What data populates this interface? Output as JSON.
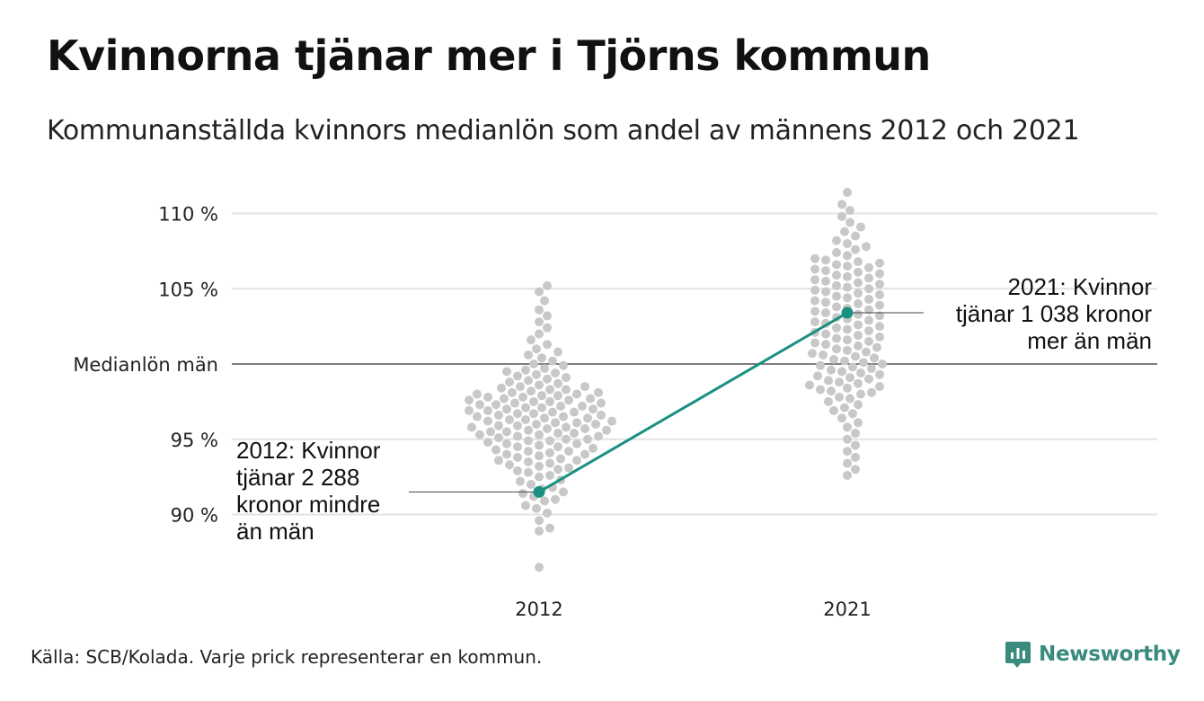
{
  "title": "Kvinnorna tjänar mer i Tjörns kommun",
  "subtitle": "Kommunanställda kvinnors medianlön som andel av männens 2012 och 2021",
  "source": "Källa: SCB/Kolada. Varje prick representerar en kommun.",
  "brand": "Newsworthy",
  "colors": {
    "dots": "#c8c8c8",
    "highlight": "#1a9080",
    "grid": "#e3e3e3",
    "refline": "#333333",
    "brand": "#3a8a7e"
  },
  "chart_data": {
    "type": "scatter",
    "subtype": "beeswarm",
    "categories": [
      "2012",
      "2021"
    ],
    "yticks": [
      {
        "value": 110,
        "label": "110 %"
      },
      {
        "value": 105,
        "label": "105 %"
      },
      {
        "value": 100,
        "label": "Medianlön män"
      },
      {
        "value": 95,
        "label": "95 %"
      },
      {
        "value": 90,
        "label": "90 %"
      }
    ],
    "ylim": [
      86,
      112
    ],
    "grid": true,
    "reference_line": 100,
    "highlight": {
      "values": [
        91.5,
        103.4
      ],
      "annotations": [
        {
          "lines": [
            "2012: Kvinnor",
            "tjänar 2 288",
            "kronor mindre",
            "än män"
          ]
        },
        {
          "lines": [
            "2021: Kvinnor",
            "tjänar 1 038 kronor",
            "mer än män"
          ]
        }
      ]
    },
    "series": [
      {
        "category": "2012",
        "values": [
          86.5,
          88.9,
          89.1,
          89.6,
          90.1,
          90.4,
          90.6,
          90.9,
          91.0,
          91.2,
          91.4,
          91.5,
          91.7,
          91.8,
          92.0,
          92.2,
          92.3,
          92.5,
          92.6,
          92.8,
          92.9,
          93.0,
          93.1,
          93.2,
          93.3,
          93.4,
          93.5,
          93.6,
          93.6,
          93.7,
          93.8,
          93.9,
          94.0,
          94.0,
          94.1,
          94.2,
          94.2,
          94.3,
          94.4,
          94.5,
          94.5,
          94.6,
          94.7,
          94.7,
          94.8,
          94.9,
          94.9,
          95.0,
          95.0,
          95.1,
          95.2,
          95.2,
          95.3,
          95.3,
          95.4,
          95.4,
          95.5,
          95.5,
          95.6,
          95.6,
          95.7,
          95.7,
          95.8,
          95.8,
          95.9,
          95.9,
          96.0,
          96.0,
          96.1,
          96.1,
          96.2,
          96.2,
          96.3,
          96.3,
          96.4,
          96.4,
          96.5,
          96.5,
          96.6,
          96.6,
          96.7,
          96.7,
          96.8,
          96.8,
          96.9,
          96.9,
          97.0,
          97.0,
          97.1,
          97.1,
          97.2,
          97.2,
          97.3,
          97.3,
          97.4,
          97.4,
          97.5,
          97.5,
          97.6,
          97.6,
          97.7,
          97.7,
          97.8,
          97.8,
          97.9,
          97.9,
          98.0,
          98.0,
          98.1,
          98.1,
          98.2,
          98.3,
          98.3,
          98.4,
          98.5,
          98.5,
          98.6,
          98.7,
          98.8,
          98.9,
          99.0,
          99.1,
          99.2,
          99.3,
          99.4,
          99.5,
          99.6,
          99.7,
          99.9,
          100.0,
          100.2,
          100.4,
          100.6,
          100.8,
          101.0,
          101.3,
          101.6,
          102.0,
          102.4,
          102.8,
          103.2,
          103.6,
          104.2,
          104.8,
          105.2
        ]
      },
      {
        "category": "2021",
        "values": [
          92.6,
          93.0,
          93.4,
          93.8,
          94.2,
          94.6,
          95.0,
          95.4,
          95.8,
          96.1,
          96.4,
          96.7,
          96.9,
          97.1,
          97.3,
          97.5,
          97.7,
          97.8,
          98.0,
          98.1,
          98.2,
          98.3,
          98.4,
          98.5,
          98.6,
          98.7,
          98.8,
          98.9,
          99.0,
          99.1,
          99.2,
          99.3,
          99.4,
          99.5,
          99.6,
          99.7,
          99.8,
          99.9,
          100.0,
          100.1,
          100.2,
          100.3,
          100.4,
          100.5,
          100.6,
          100.7,
          100.8,
          100.9,
          101.0,
          101.1,
          101.2,
          101.3,
          101.4,
          101.5,
          101.6,
          101.7,
          101.8,
          101.9,
          102.0,
          102.1,
          102.2,
          102.3,
          102.4,
          102.5,
          102.6,
          102.7,
          102.8,
          102.9,
          103.0,
          103.1,
          103.2,
          103.3,
          103.4,
          103.5,
          103.6,
          103.7,
          103.8,
          103.9,
          104.0,
          104.1,
          104.2,
          104.3,
          104.4,
          104.5,
          104.6,
          104.7,
          104.8,
          104.9,
          105.0,
          105.1,
          105.2,
          105.3,
          105.4,
          105.5,
          105.6,
          105.7,
          105.8,
          105.9,
          106.0,
          106.1,
          106.2,
          106.3,
          106.4,
          106.5,
          106.6,
          106.7,
          106.8,
          106.9,
          107.0,
          107.2,
          107.4,
          107.6,
          107.8,
          108.0,
          108.2,
          108.5,
          108.8,
          109.1,
          109.4,
          109.8,
          110.2,
          110.6,
          111.4
        ]
      }
    ]
  }
}
